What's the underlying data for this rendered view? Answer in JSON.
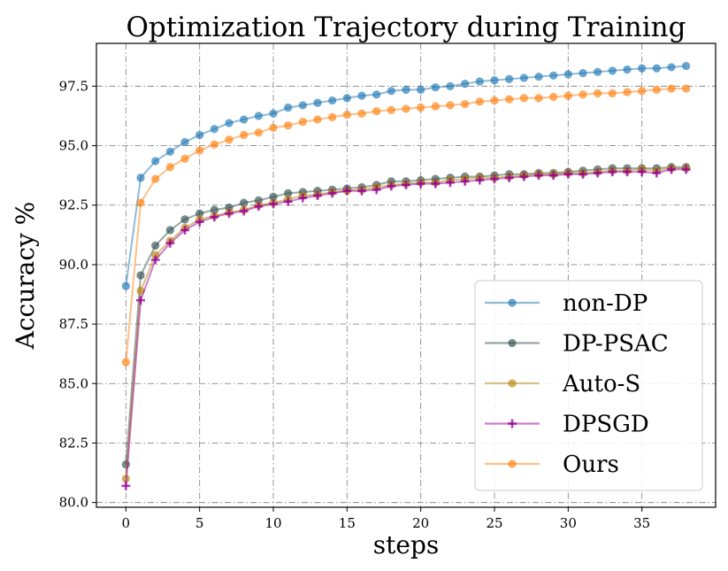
{
  "chart_data": {
    "type": "line",
    "title": "Optimization Trajectory during Training",
    "xlabel": "steps",
    "ylabel": "Accuracy %",
    "xlim": [
      -2,
      40
    ],
    "ylim": [
      79.8,
      99.3
    ],
    "xticks": [
      0,
      5,
      10,
      15,
      20,
      25,
      30,
      35
    ],
    "yticks": [
      80.0,
      82.5,
      85.0,
      87.5,
      90.0,
      92.5,
      95.0,
      97.5
    ],
    "ytick_labels": [
      "80.0",
      "82.5",
      "85.0",
      "87.5",
      "90.0",
      "92.5",
      "95.0",
      "97.5"
    ],
    "grid": true,
    "legend_position": "lower-right",
    "x": [
      0,
      1,
      2,
      3,
      4,
      5,
      6,
      7,
      8,
      9,
      10,
      11,
      12,
      13,
      14,
      15,
      16,
      17,
      18,
      19,
      20,
      21,
      22,
      23,
      24,
      25,
      26,
      27,
      28,
      29,
      30,
      31,
      32,
      33,
      34,
      35,
      36,
      37,
      38
    ],
    "series": [
      {
        "name": "non-DP",
        "color": "#1f77b4",
        "marker": "circle",
        "values": [
          89.1,
          93.65,
          94.35,
          94.75,
          95.15,
          95.45,
          95.7,
          95.95,
          96.1,
          96.25,
          96.35,
          96.6,
          96.7,
          96.8,
          96.9,
          97.0,
          97.1,
          97.15,
          97.3,
          97.35,
          97.35,
          97.45,
          97.5,
          97.6,
          97.7,
          97.75,
          97.8,
          97.85,
          97.9,
          97.95,
          98.0,
          98.05,
          98.1,
          98.15,
          98.2,
          98.25,
          98.25,
          98.3,
          98.35
        ]
      },
      {
        "name": "DP-PSAC",
        "color": "#2f4f4f",
        "marker": "circle",
        "values": [
          81.6,
          89.55,
          90.8,
          91.45,
          91.9,
          92.15,
          92.3,
          92.4,
          92.6,
          92.7,
          92.85,
          93.0,
          93.05,
          93.1,
          93.15,
          93.2,
          93.25,
          93.35,
          93.5,
          93.5,
          93.55,
          93.6,
          93.65,
          93.7,
          93.7,
          93.75,
          93.8,
          93.8,
          93.85,
          93.85,
          93.9,
          93.95,
          94.0,
          94.05,
          94.05,
          94.05,
          94.05,
          94.1,
          94.1
        ]
      },
      {
        "name": "Auto-S",
        "color": "#b8860b",
        "marker": "circle",
        "values": [
          81.0,
          88.9,
          90.4,
          91.0,
          91.55,
          91.9,
          92.05,
          92.2,
          92.3,
          92.5,
          92.6,
          92.75,
          92.9,
          92.95,
          93.05,
          93.1,
          93.15,
          93.25,
          93.35,
          93.4,
          93.45,
          93.45,
          93.55,
          93.6,
          93.65,
          93.65,
          93.7,
          93.75,
          93.8,
          93.8,
          93.85,
          93.85,
          93.9,
          93.95,
          93.95,
          94.0,
          93.95,
          94.05,
          94.05
        ]
      },
      {
        "name": "DPSGD",
        "color": "#990099",
        "marker": "plus",
        "values": [
          80.7,
          88.5,
          90.2,
          90.9,
          91.45,
          91.8,
          92.0,
          92.15,
          92.25,
          92.45,
          92.55,
          92.65,
          92.8,
          92.9,
          93.0,
          93.1,
          93.1,
          93.15,
          93.3,
          93.35,
          93.4,
          93.4,
          93.45,
          93.5,
          93.55,
          93.6,
          93.65,
          93.7,
          93.75,
          93.75,
          93.8,
          93.8,
          93.85,
          93.9,
          93.9,
          93.9,
          93.85,
          94.0,
          94.0
        ]
      },
      {
        "name": "Ours",
        "color": "#ff7f0e",
        "marker": "circle",
        "values": [
          85.9,
          92.6,
          93.6,
          94.1,
          94.45,
          94.8,
          95.05,
          95.25,
          95.45,
          95.55,
          95.75,
          95.85,
          96.0,
          96.1,
          96.2,
          96.3,
          96.35,
          96.45,
          96.5,
          96.55,
          96.6,
          96.65,
          96.7,
          96.75,
          96.85,
          96.9,
          96.95,
          97.0,
          97.0,
          97.05,
          97.1,
          97.15,
          97.2,
          97.2,
          97.25,
          97.3,
          97.35,
          97.4,
          97.4
        ]
      }
    ]
  }
}
